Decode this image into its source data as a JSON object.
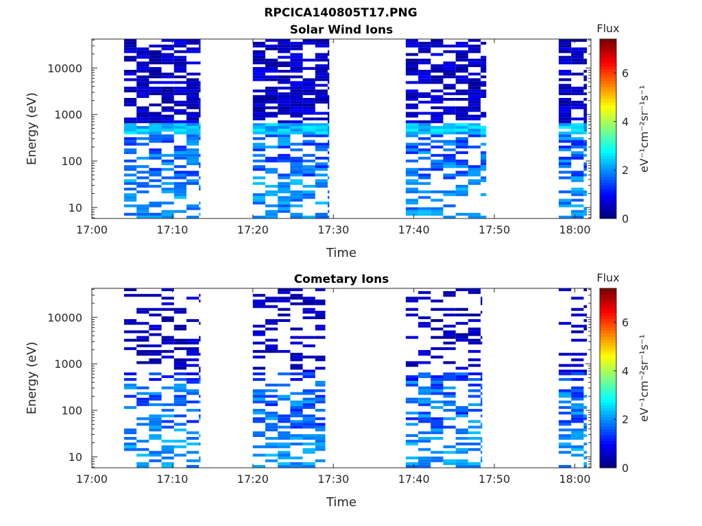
{
  "figure": {
    "title": "RPCICA140805T17.PNG"
  },
  "chart_data": [
    {
      "type": "heatmap",
      "title": "Solar Wind Ions",
      "xlabel": "Time",
      "ylabel": "Energy (eV)",
      "x_ticks": [
        "17:00",
        "17:10",
        "17:20",
        "17:30",
        "17:40",
        "17:50",
        "18:00"
      ],
      "y_ticks": [
        "10",
        "100",
        "1000",
        "10000"
      ],
      "y_scale": "log",
      "colorbar": {
        "title": "Flux",
        "label": "eV⁻¹cm⁻²sr⁻¹s⁻¹",
        "ticks": [
          "0",
          "2",
          "4",
          "6"
        ],
        "range": [
          0,
          7.4
        ],
        "colormap": "jet"
      },
      "data_blocks": [
        "17:04–17:13",
        "17:20–17:30",
        "17:39–17:49",
        "17:58–18:01"
      ]
    },
    {
      "type": "heatmap",
      "title": "Cometary Ions",
      "xlabel": "Time",
      "ylabel": "Energy (eV)",
      "x_ticks": [
        "17:00",
        "17:10",
        "17:20",
        "17:30",
        "17:40",
        "17:50",
        "18:00"
      ],
      "y_ticks": [
        "10",
        "100",
        "1000",
        "10000"
      ],
      "y_scale": "log",
      "colorbar": {
        "title": "Flux",
        "label": "eV⁻¹cm⁻²sr⁻¹s⁻¹",
        "ticks": [
          "0",
          "2",
          "4",
          "6"
        ],
        "range": [
          0,
          7.4
        ],
        "colormap": "jet"
      },
      "data_blocks": [
        "17:04–17:13",
        "17:20–17:29",
        "17:39–17:48",
        "17:58–18:01"
      ]
    }
  ]
}
